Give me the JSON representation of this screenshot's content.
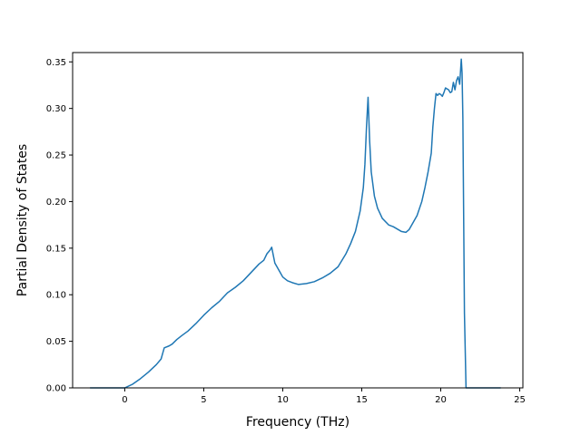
{
  "chart_data": {
    "type": "line",
    "xlabel": "Frequency (THz)",
    "ylabel": "Partial Density of States",
    "xlim": [
      -3.3,
      25.2
    ],
    "ylim": [
      0.0,
      0.36
    ],
    "xticks": [
      0,
      5,
      10,
      15,
      20,
      25
    ],
    "xtick_labels": [
      "0",
      "5",
      "10",
      "15",
      "20",
      "25"
    ],
    "yticks": [
      0.0,
      0.05,
      0.1,
      0.15,
      0.2,
      0.25,
      0.3,
      0.35
    ],
    "ytick_labels": [
      "0.00",
      "0.05",
      "0.10",
      "0.15",
      "0.20",
      "0.25",
      "0.30",
      "0.35"
    ],
    "grid": false,
    "line_color": "#1f77b4",
    "series": [
      {
        "x": [
          -2.2,
          -1.0,
          0.0,
          0.5,
          1.0,
          1.5,
          2.0,
          2.3,
          2.4,
          2.5,
          2.8,
          3.0,
          3.3,
          3.6,
          4.0,
          4.5,
          5.0,
          5.5,
          6.0,
          6.5,
          7.0,
          7.5,
          8.0,
          8.5,
          8.8,
          9.0,
          9.2,
          9.3,
          9.5,
          9.8,
          10.0,
          10.3,
          10.6,
          11.0,
          11.5,
          12.0,
          12.5,
          13.0,
          13.5,
          14.0,
          14.3,
          14.6,
          14.9,
          15.1,
          15.2,
          15.3,
          15.4,
          15.5,
          15.6,
          15.8,
          16.0,
          16.3,
          16.7,
          17.0,
          17.5,
          17.8,
          18.0,
          18.2,
          18.5,
          18.8,
          19.0,
          19.2,
          19.4,
          19.5,
          19.6,
          19.7,
          19.8,
          19.9,
          20.0,
          20.1,
          20.2,
          20.3,
          20.5,
          20.6,
          20.7,
          20.8,
          20.9,
          21.0,
          21.1,
          21.2,
          21.3,
          21.35,
          21.4,
          21.5,
          21.6,
          21.7,
          22.0,
          23.0,
          23.8
        ],
        "y": [
          0.0,
          0.0,
          0.0,
          0.004,
          0.01,
          0.017,
          0.025,
          0.031,
          0.037,
          0.043,
          0.045,
          0.047,
          0.052,
          0.056,
          0.061,
          0.069,
          0.078,
          0.086,
          0.093,
          0.102,
          0.108,
          0.115,
          0.124,
          0.133,
          0.137,
          0.144,
          0.148,
          0.151,
          0.134,
          0.125,
          0.119,
          0.115,
          0.113,
          0.111,
          0.112,
          0.114,
          0.118,
          0.123,
          0.13,
          0.144,
          0.155,
          0.168,
          0.19,
          0.215,
          0.24,
          0.28,
          0.312,
          0.265,
          0.232,
          0.206,
          0.193,
          0.182,
          0.175,
          0.173,
          0.168,
          0.167,
          0.17,
          0.176,
          0.185,
          0.2,
          0.215,
          0.232,
          0.252,
          0.28,
          0.3,
          0.316,
          0.314,
          0.316,
          0.315,
          0.313,
          0.317,
          0.322,
          0.32,
          0.317,
          0.318,
          0.328,
          0.32,
          0.33,
          0.334,
          0.326,
          0.353,
          0.338,
          0.29,
          0.08,
          0.0,
          0.0,
          0.0,
          0.0,
          0.0
        ]
      }
    ]
  }
}
